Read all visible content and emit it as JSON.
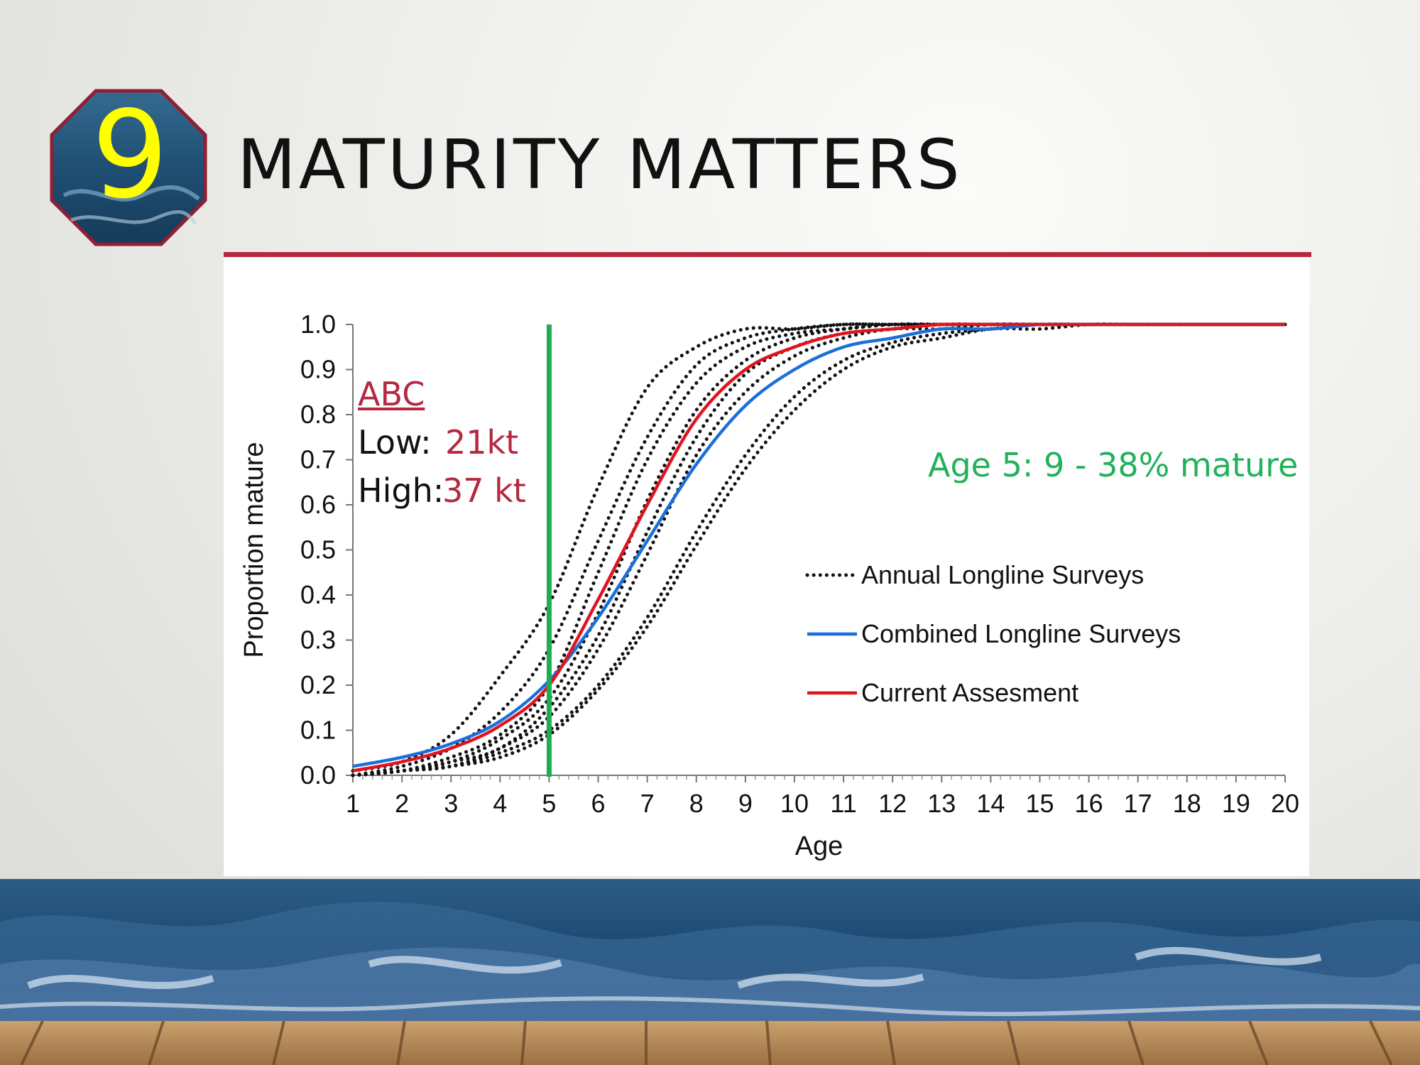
{
  "slide": {
    "number": "9",
    "title": "MATURITY MATTERS"
  },
  "colors": {
    "accent": "#b5283f",
    "annual": "#111111",
    "combined": "#1a6fd8",
    "current": "#e0141e",
    "age_marker": "#1fae4f",
    "age_note": "#22b15a",
    "badge_number": "#ffff00"
  },
  "icons": {
    "badge": "octagon-wave-badge",
    "background": "ocean-waves-and-wooden-dock"
  },
  "annotations": {
    "abc": "ABC",
    "low_label": "Low:",
    "low_value": "21kt",
    "high_label": "High:",
    "high_value": "37 kt",
    "age5_note": "Age 5:  9 - 38% mature"
  },
  "chart_data": {
    "type": "line",
    "xlabel": "Age",
    "ylabel": "Proportion  mature",
    "xlim": [
      1,
      20
    ],
    "ylim": [
      0,
      1
    ],
    "x_ticks": [
      "1",
      "2",
      "3",
      "4",
      "5",
      "6",
      "7",
      "8",
      "9",
      "10",
      "11",
      "12",
      "13",
      "14",
      "15",
      "16",
      "17",
      "18",
      "19",
      "20"
    ],
    "y_ticks": [
      "0.0",
      "0.1",
      "0.2",
      "0.3",
      "0.4",
      "0.5",
      "0.6",
      "0.7",
      "0.8",
      "0.9",
      "1.0"
    ],
    "x": [
      1,
      2,
      3,
      4,
      5,
      6,
      7,
      8,
      9,
      10,
      11,
      12,
      13,
      14,
      15,
      16,
      17,
      18,
      19,
      20
    ],
    "series": [
      {
        "name": "Annual Longline Surveys",
        "style": "dotted",
        "values": [
          0.01,
          0.03,
          0.09,
          0.22,
          0.38,
          0.64,
          0.86,
          0.95,
          0.99,
          0.99,
          1.0,
          1.0,
          1.0,
          1.0,
          1.0,
          1.0,
          1.0,
          1.0,
          1.0,
          1.0
        ]
      },
      {
        "name": "",
        "style": "dotted",
        "values": [
          0.0,
          0.02,
          0.06,
          0.14,
          0.28,
          0.52,
          0.75,
          0.91,
          0.97,
          0.99,
          1.0,
          1.0,
          1.0,
          1.0,
          1.0,
          1.0,
          1.0,
          1.0,
          1.0,
          1.0
        ]
      },
      {
        "name": "",
        "style": "dotted",
        "values": [
          0.0,
          0.01,
          0.04,
          0.09,
          0.2,
          0.45,
          0.7,
          0.87,
          0.95,
          0.98,
          0.99,
          1.0,
          1.0,
          1.0,
          1.0,
          1.0,
          1.0,
          1.0,
          1.0,
          1.0
        ]
      },
      {
        "name": "",
        "style": "dotted",
        "values": [
          0.0,
          0.01,
          0.03,
          0.08,
          0.17,
          0.36,
          0.61,
          0.81,
          0.92,
          0.97,
          0.99,
          1.0,
          1.0,
          1.0,
          1.0,
          1.0,
          1.0,
          1.0,
          1.0,
          1.0
        ]
      },
      {
        "name": "",
        "style": "dotted",
        "values": [
          0.0,
          0.01,
          0.03,
          0.06,
          0.15,
          0.31,
          0.54,
          0.75,
          0.89,
          0.95,
          0.98,
          0.99,
          1.0,
          1.0,
          1.0,
          1.0,
          1.0,
          1.0,
          1.0,
          1.0
        ]
      },
      {
        "name": "",
        "style": "dotted",
        "values": [
          0.0,
          0.01,
          0.02,
          0.06,
          0.13,
          0.28,
          0.49,
          0.71,
          0.85,
          0.93,
          0.97,
          0.99,
          0.99,
          1.0,
          1.0,
          1.0,
          1.0,
          1.0,
          1.0,
          1.0
        ]
      },
      {
        "name": "",
        "style": "dotted",
        "values": [
          0.0,
          0.01,
          0.02,
          0.05,
          0.1,
          0.2,
          0.35,
          0.54,
          0.71,
          0.84,
          0.92,
          0.96,
          0.98,
          0.99,
          1.0,
          1.0,
          1.0,
          1.0,
          1.0,
          1.0
        ]
      },
      {
        "name": "",
        "style": "dotted",
        "values": [
          0.0,
          0.01,
          0.02,
          0.04,
          0.09,
          0.19,
          0.33,
          0.51,
          0.68,
          0.81,
          0.9,
          0.95,
          0.97,
          0.99,
          0.99,
          1.0,
          1.0,
          1.0,
          1.0,
          1.0
        ]
      },
      {
        "name": "Combined Longline Surveys",
        "style": "solid",
        "values": [
          0.02,
          0.04,
          0.07,
          0.12,
          0.21,
          0.35,
          0.52,
          0.69,
          0.82,
          0.9,
          0.95,
          0.97,
          0.99,
          0.99,
          1.0,
          1.0,
          1.0,
          1.0,
          1.0,
          1.0
        ]
      },
      {
        "name": "Current Assesment",
        "style": "solid",
        "values": [
          0.01,
          0.03,
          0.06,
          0.11,
          0.2,
          0.39,
          0.6,
          0.79,
          0.9,
          0.95,
          0.98,
          0.99,
          1.0,
          1.0,
          1.0,
          1.0,
          1.0,
          1.0,
          1.0,
          1.0
        ]
      }
    ],
    "reference_lines": [
      {
        "axis": "x",
        "value": 5
      }
    ],
    "legend": {
      "position": "lower-right"
    },
    "grid": false
  }
}
